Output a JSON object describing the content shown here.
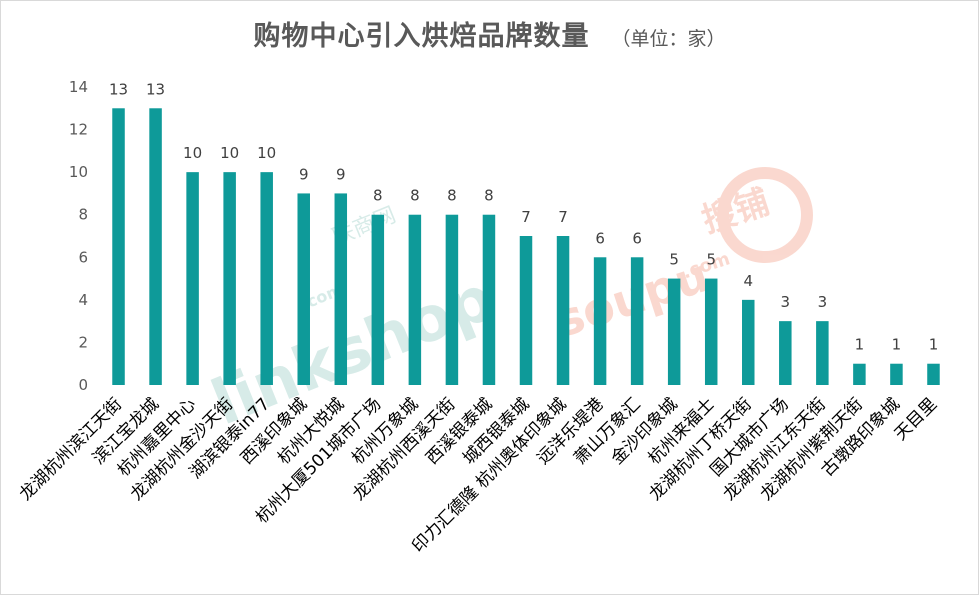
{
  "chart_data": {
    "type": "bar",
    "title": "购物中心引入烘焙品牌数量",
    "unit_label": "（单位：家）",
    "categories": [
      "龙湖杭州滨江天街",
      "滨江宝龙城",
      "杭州嘉里中心",
      "龙湖杭州金沙天街",
      "湖滨银泰in77",
      "西溪印象城",
      "杭州大悦城",
      "杭州大厦501城市广场",
      "杭州万象城",
      "龙湖杭州西溪天街",
      "西溪银泰城",
      "城西银泰城",
      "印力汇德隆 杭州奥体印象城",
      "远洋乐堤港",
      "萧山万象汇",
      "金沙印象城",
      "杭州来福士",
      "龙湖杭州丁桥天街",
      "国大城市广场",
      "龙湖杭州江东天街",
      "龙湖杭州紫荆天街",
      "古墩路印象城",
      "天目里"
    ],
    "values": [
      13,
      13,
      10,
      10,
      10,
      9,
      9,
      8,
      8,
      8,
      8,
      7,
      7,
      6,
      6,
      5,
      5,
      4,
      3,
      3,
      1,
      1,
      1
    ],
    "ylim": [
      0,
      14
    ],
    "yticks": [
      0,
      2,
      4,
      6,
      8,
      10,
      12,
      14
    ],
    "bar_color": "#0e9a99",
    "xlabel": "",
    "ylabel": ""
  },
  "watermarks": {
    "linkshop": "linkshop",
    "linkshop_com": ".com",
    "linkshop_cn": "联商网",
    "soupu": "soupu",
    "soupu_com": ".com",
    "soupu_cn": "搜铺"
  },
  "colors": {
    "linkshop": "#b8dcd6",
    "soupu": "#f6b9a9"
  }
}
